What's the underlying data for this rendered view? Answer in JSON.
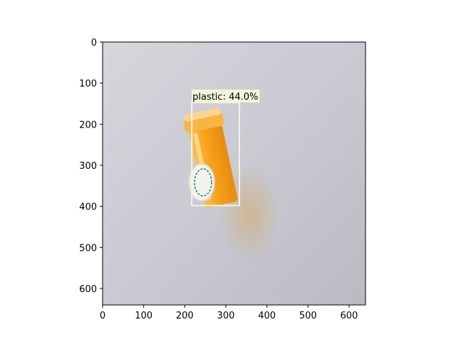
{
  "image": {
    "subject": "orange prescription pill bottle with white child-resistant cap on a grey surface"
  },
  "axes": {
    "x_range": [
      0,
      640
    ],
    "y_range": [
      0,
      640
    ],
    "y_inverted": true,
    "x_ticks": [
      "0",
      "100",
      "200",
      "300",
      "400",
      "500",
      "600"
    ],
    "y_ticks": [
      "0",
      "100",
      "200",
      "300",
      "400",
      "500",
      "600"
    ]
  },
  "detection": {
    "label": "plastic: 44.0%",
    "class": "plastic",
    "confidence": 44.0,
    "box": {
      "x_min": 217,
      "y_min": 147,
      "x_max": 333,
      "y_max": 398
    },
    "box_color": "#f5f5dc",
    "label_bg_color": "#f5f5dc"
  },
  "colors": {
    "bottle": "#f7a21a",
    "cap": "#f2f2ee",
    "cap_text": "#2e7d5b"
  }
}
